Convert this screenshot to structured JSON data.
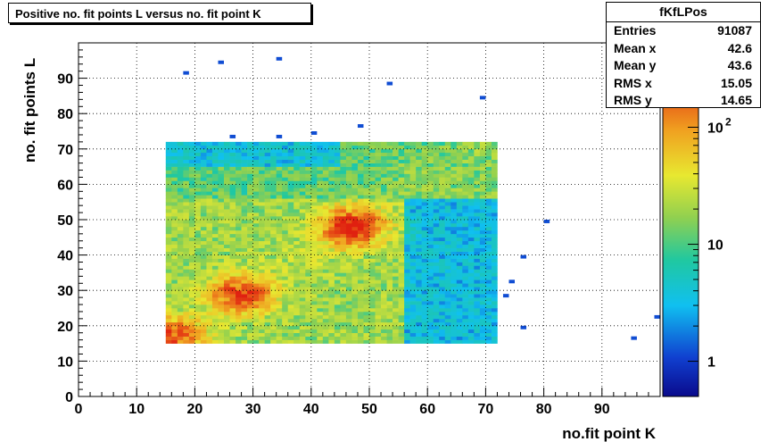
{
  "chart_data": {
    "type": "heatmap",
    "title": "Positive no. fit points L versus no. fit point K",
    "xlabel": "no.fit point K",
    "ylabel": "no. fit points  L",
    "xlim": [
      0,
      100
    ],
    "ylim": [
      0,
      100
    ],
    "x_ticks": [
      "0",
      "10",
      "20",
      "30",
      "40",
      "50",
      "60",
      "70",
      "80",
      "90"
    ],
    "y_ticks": [
      "0",
      "10",
      "20",
      "30",
      "40",
      "50",
      "60",
      "70",
      "80",
      "90"
    ],
    "grid": true,
    "z_scale": "log",
    "zlim": [
      0.5,
      300
    ],
    "colorbar_ticks": [
      "1",
      "10",
      "10"
    ],
    "colorbar_tick_values": [
      1,
      10,
      100
    ],
    "colorbar_exp": "2",
    "region": {
      "x": [
        15,
        72
      ],
      "y": [
        15,
        72
      ]
    },
    "peaks": [
      {
        "x": 47,
        "y": 48,
        "value": 250
      },
      {
        "x": 28,
        "y": 29,
        "value": 200
      },
      {
        "x": 16,
        "y": 17,
        "value": 170
      }
    ],
    "outliers": [
      [
        18,
        91
      ],
      [
        24,
        94
      ],
      [
        34,
        95
      ],
      [
        53,
        88
      ],
      [
        69,
        84
      ],
      [
        48,
        76
      ],
      [
        40,
        74
      ],
      [
        34,
        73
      ],
      [
        80,
        49
      ],
      [
        76,
        39
      ],
      [
        74,
        32
      ],
      [
        73,
        28
      ],
      [
        76,
        19
      ],
      [
        95,
        16
      ],
      [
        99,
        22
      ],
      [
        26,
        73
      ]
    ]
  },
  "stats": {
    "name": "fKfLPos",
    "rows": [
      {
        "label": "Entries",
        "value": "91087"
      },
      {
        "label": "Mean x",
        "value": "42.6"
      },
      {
        "label": "Mean y",
        "value": "43.6"
      },
      {
        "label": "RMS x",
        "value": "15.05"
      },
      {
        "label": "RMS y",
        "value": "14.65"
      }
    ]
  }
}
